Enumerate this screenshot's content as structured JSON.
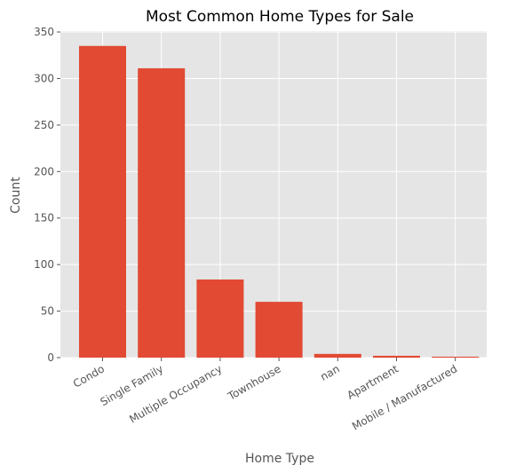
{
  "chart_data": {
    "type": "bar",
    "title": "Most Common Home Types for Sale",
    "xlabel": "Home Type",
    "ylabel": "Count",
    "categories": [
      "Condo",
      "Single Family",
      "Multiple Occupancy",
      "Townhouse",
      "nan",
      "Apartment",
      "Mobile / Manufactured"
    ],
    "values": [
      335,
      311,
      84,
      60,
      4,
      2,
      1
    ],
    "ylim": [
      0,
      351
    ],
    "yticks": [
      0,
      50,
      100,
      150,
      200,
      250,
      300,
      350
    ],
    "grid": true,
    "bar_color": "#E24A33",
    "background_color": "#E5E5E5"
  }
}
